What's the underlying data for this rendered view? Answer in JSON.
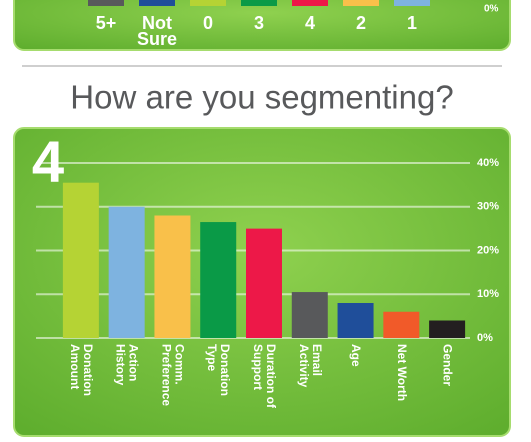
{
  "top_panel": {
    "categories": [
      "5+",
      "Not\nSure",
      "0",
      "3",
      "4",
      "2",
      "1"
    ],
    "colors": [
      "#58595b",
      "#1f4e9a",
      "#b5d334",
      "#0a9a47",
      "#ed1848",
      "#f9c04a",
      "#7eb3e0"
    ],
    "axis_label": "0%"
  },
  "chart_data": {
    "type": "bar",
    "title": "How are you segmenting?",
    "annotation": "4",
    "categories": [
      "Donation\nAmount",
      "Action\nHistory",
      "Comm.\nPreference",
      "Donation\nType",
      "Duration of\nSupport",
      "Email\nActivity",
      "Age",
      "Net Worth",
      "Gender"
    ],
    "values": [
      35.5,
      30,
      28,
      26.5,
      25,
      10.5,
      8,
      6,
      4
    ],
    "colors": [
      "#b5d334",
      "#7eb3e0",
      "#f9c04a",
      "#0a9a47",
      "#ed1848",
      "#58595b",
      "#1f4e9a",
      "#f15a29",
      "#231f20"
    ],
    "ylim": [
      0,
      40
    ],
    "yticks": [
      {
        "value": 0,
        "label": "0%"
      },
      {
        "value": 10,
        "label": "10%"
      },
      {
        "value": 20,
        "label": "20%"
      },
      {
        "value": 30,
        "label": "30%"
      },
      {
        "value": 40,
        "label": "40%"
      }
    ],
    "grid": true
  }
}
